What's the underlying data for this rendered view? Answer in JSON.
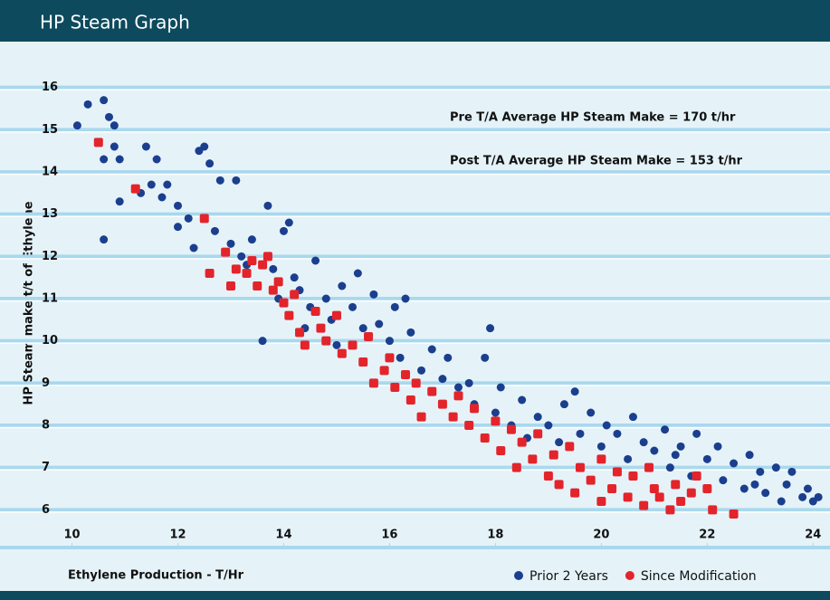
{
  "chart_data": {
    "type": "scatter",
    "title": "HP Steam Graph",
    "x_label": "Ethylene Production - T/Hr",
    "y_label": "HP Steam make t/t of Ethylene",
    "annotations": [
      "Pre T/A Average HP Steam Make = 170 t/hr",
      "Post T/A Average HP Steam Make = 153 t/hr"
    ],
    "xlim": [
      9.7,
      24.2
    ],
    "ylim": [
      5.6,
      16.4
    ],
    "xticks": [
      10,
      12,
      14,
      16,
      18,
      20,
      22,
      24
    ],
    "yticks": [
      6,
      7,
      8,
      9,
      10,
      11,
      12,
      13,
      14,
      15,
      16
    ],
    "grid": true,
    "legend": "bottom-right",
    "series": [
      {
        "name": "Prior 2 Years",
        "color": "#1b3f8e",
        "marker": "circle",
        "x": [
          10.1,
          10.3,
          10.5,
          10.6,
          10.6,
          10.6,
          10.7,
          10.8,
          10.8,
          10.9,
          10.9,
          11.3,
          11.4,
          11.5,
          11.6,
          11.7,
          11.8,
          12.0,
          12.0,
          12.2,
          12.3,
          12.4,
          12.5,
          12.6,
          12.7,
          12.8,
          13.0,
          13.1,
          13.2,
          13.3,
          13.4,
          13.5,
          13.6,
          13.7,
          13.8,
          13.9,
          14.0,
          14.1,
          14.2,
          14.3,
          14.4,
          14.5,
          14.6,
          14.8,
          14.9,
          15.0,
          15.1,
          15.3,
          15.4,
          15.5,
          15.7,
          15.8,
          16.0,
          16.1,
          16.2,
          16.3,
          16.4,
          16.6,
          16.8,
          17.0,
          17.1,
          17.3,
          17.5,
          17.6,
          17.8,
          17.9,
          18.0,
          18.1,
          18.3,
          18.5,
          18.6,
          18.8,
          19.0,
          19.2,
          19.3,
          19.5,
          19.6,
          19.8,
          20.0,
          20.1,
          20.3,
          20.5,
          20.6,
          20.8,
          21.0,
          21.2,
          21.3,
          21.5,
          21.7,
          21.8,
          22.0,
          22.2,
          22.3,
          22.5,
          22.7,
          22.8,
          23.0,
          23.1,
          23.3,
          23.5,
          23.6,
          23.8,
          23.9,
          24.0,
          24.1,
          23.4,
          22.9,
          21.4
        ],
        "values": [
          15.1,
          15.6,
          14.7,
          15.7,
          14.3,
          12.4,
          15.3,
          14.6,
          15.1,
          14.3,
          13.3,
          13.5,
          14.6,
          13.7,
          14.3,
          13.4,
          13.7,
          13.2,
          12.7,
          12.9,
          12.2,
          14.5,
          14.6,
          14.2,
          12.6,
          13.8,
          12.3,
          13.8,
          12.0,
          11.8,
          12.4,
          11.3,
          10.0,
          13.2,
          11.7,
          11.0,
          12.6,
          12.8,
          11.5,
          11.2,
          10.3,
          10.8,
          11.9,
          11.0,
          10.5,
          9.9,
          11.3,
          10.8,
          11.6,
          10.3,
          11.1,
          10.4,
          10.0,
          10.8,
          9.6,
          11.0,
          10.2,
          9.3,
          9.8,
          9.1,
          9.6,
          8.9,
          9.0,
          8.5,
          9.6,
          10.3,
          8.3,
          8.9,
          8.0,
          8.6,
          7.7,
          8.2,
          8.0,
          7.6,
          8.5,
          8.8,
          7.8,
          8.3,
          7.5,
          8.0,
          7.8,
          7.2,
          8.2,
          7.6,
          7.4,
          7.9,
          7.0,
          7.5,
          6.8,
          7.8,
          7.2,
          7.5,
          6.7,
          7.1,
          6.5,
          7.3,
          6.9,
          6.4,
          7.0,
          6.6,
          6.9,
          6.3,
          6.5,
          6.2,
          6.3,
          6.2,
          6.6,
          7.3
        ]
      },
      {
        "name": "Since Modification",
        "color": "#e3242b",
        "marker": "square",
        "x": [
          10.5,
          11.2,
          12.5,
          12.6,
          12.9,
          13.0,
          13.1,
          13.3,
          13.4,
          13.5,
          13.6,
          13.7,
          13.8,
          13.9,
          14.0,
          14.1,
          14.2,
          14.3,
          14.4,
          14.6,
          14.7,
          14.8,
          15.0,
          15.1,
          15.3,
          15.5,
          15.6,
          15.7,
          15.9,
          16.0,
          16.1,
          16.3,
          16.4,
          16.5,
          16.6,
          16.8,
          17.0,
          17.2,
          17.3,
          17.5,
          17.6,
          17.8,
          18.0,
          18.1,
          18.3,
          18.4,
          18.5,
          18.7,
          18.8,
          19.0,
          19.1,
          19.2,
          19.4,
          19.5,
          19.6,
          19.8,
          20.0,
          20.0,
          20.2,
          20.3,
          20.5,
          20.6,
          20.8,
          21.0,
          21.1,
          21.3,
          21.4,
          21.5,
          21.7,
          21.8,
          22.0,
          22.1,
          22.5,
          20.9
        ],
        "values": [
          14.7,
          13.6,
          12.9,
          11.6,
          12.1,
          11.3,
          11.7,
          11.6,
          11.9,
          11.3,
          11.8,
          12.0,
          11.2,
          11.4,
          10.9,
          10.6,
          11.1,
          10.2,
          9.9,
          10.7,
          10.3,
          10.0,
          10.6,
          9.7,
          9.9,
          9.5,
          10.1,
          9.0,
          9.3,
          9.6,
          8.9,
          9.2,
          8.6,
          9.0,
          8.2,
          8.8,
          8.5,
          8.2,
          8.7,
          8.0,
          8.4,
          7.7,
          8.1,
          7.4,
          7.9,
          7.0,
          7.6,
          7.2,
          7.8,
          6.8,
          7.3,
          6.6,
          7.5,
          6.4,
          7.0,
          6.7,
          6.2,
          7.2,
          6.5,
          6.9,
          6.3,
          6.8,
          6.1,
          6.5,
          6.3,
          6.0,
          6.6,
          6.2,
          6.4,
          6.8,
          6.5,
          6.0,
          5.9,
          7.0
        ]
      }
    ]
  }
}
